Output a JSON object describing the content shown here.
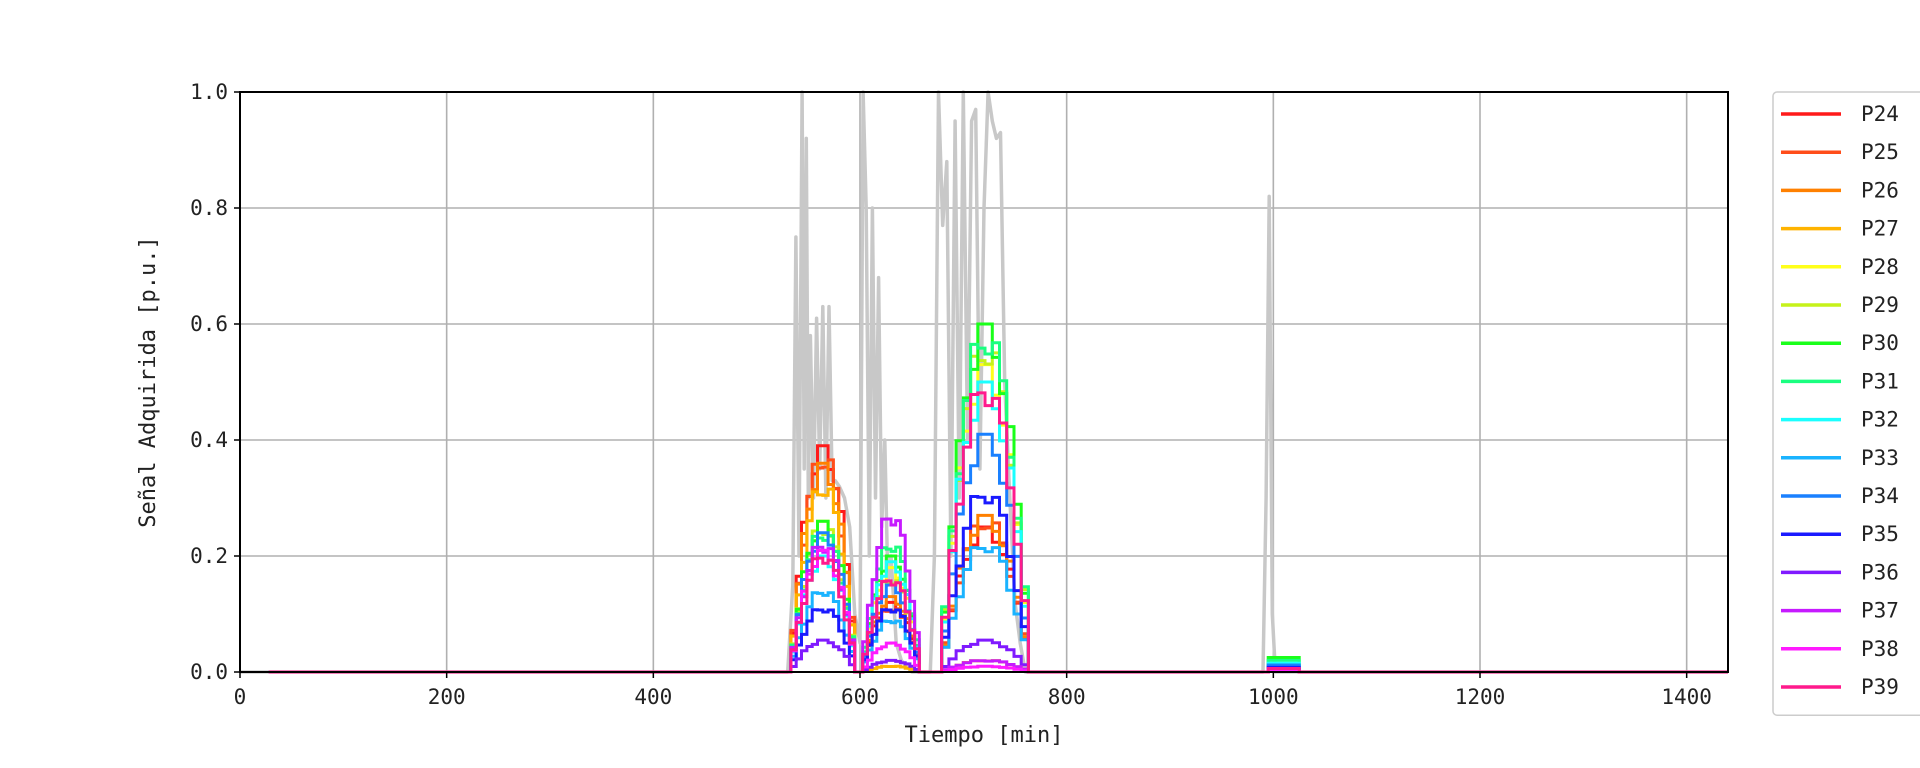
{
  "chart_data": {
    "type": "line",
    "xlabel": "Tiempo [min]",
    "ylabel": "Señal Adquirida [p.u.]",
    "xlim": [
      0,
      1440
    ],
    "ylim": [
      0,
      1.0
    ],
    "xticks": [
      "0",
      "200",
      "400",
      "600",
      "800",
      "1000",
      "1200",
      "1400"
    ],
    "yticks": [
      "0.0",
      "0.2",
      "0.4",
      "0.6",
      "0.8",
      "1.0"
    ],
    "grid": true,
    "legend_position": "right-outside",
    "background_series": {
      "color": "#c8c8c8",
      "x": [
        0,
        530,
        535,
        538,
        541,
        544,
        546,
        548,
        550,
        552,
        555,
        558,
        561,
        564,
        567,
        570,
        573,
        576,
        580,
        585,
        590,
        595,
        600,
        603,
        606,
        609,
        612,
        615,
        618,
        621,
        624,
        627,
        630,
        635,
        640,
        650,
        660,
        668,
        672,
        676,
        680,
        684,
        688,
        692,
        696,
        700,
        704,
        708,
        712,
        716,
        720,
        724,
        728,
        732,
        736,
        740,
        745,
        750,
        755,
        760,
        765,
        770,
        990,
        993,
        996,
        999,
        1002,
        1440
      ],
      "y": [
        0,
        0,
        0.15,
        0.75,
        0.2,
        1.0,
        0.35,
        0.92,
        0.3,
        0.58,
        0.3,
        0.61,
        0.35,
        0.63,
        0.3,
        0.63,
        0.33,
        0.33,
        0.32,
        0.3,
        0.25,
        0.1,
        0.05,
        1.0,
        0.8,
        0.2,
        0.8,
        0.3,
        0.68,
        0.25,
        0.4,
        0.15,
        0.2,
        0.05,
        0.02,
        0.0,
        0.0,
        0.0,
        0.2,
        1.0,
        0.77,
        0.88,
        0.2,
        0.95,
        0.3,
        1.0,
        0.4,
        0.95,
        0.97,
        0.35,
        0.8,
        1.0,
        0.95,
        0.92,
        0.93,
        0.5,
        0.3,
        0.12,
        0.05,
        0.0,
        0.0,
        0.0,
        0.0,
        0.3,
        0.82,
        0.1,
        0.0,
        0.0
      ]
    },
    "series": [
      {
        "name": "P24",
        "color": "#ff1a1a",
        "peaks": [
          0.39,
          0.12,
          0.25,
          0.005
        ]
      },
      {
        "name": "P25",
        "color": "#ff4d1a",
        "peaks": [
          0.37,
          0.11,
          0.26,
          0.005
        ]
      },
      {
        "name": "P26",
        "color": "#ff8000",
        "peaks": [
          0.36,
          0.13,
          0.27,
          0.006
        ]
      },
      {
        "name": "P27",
        "color": "#ffb300",
        "peaks": [
          0.32,
          0.01,
          0.02,
          0.004
        ]
      },
      {
        "name": "P28",
        "color": "#ffff1a",
        "peaks": [
          0.26,
          0.18,
          0.53,
          0.01
        ]
      },
      {
        "name": "P29",
        "color": "#c6f21a",
        "peaks": [
          0.25,
          0.16,
          0.56,
          0.012
        ]
      },
      {
        "name": "P30",
        "color": "#1aff1a",
        "peaks": [
          0.26,
          0.2,
          0.6,
          0.025
        ]
      },
      {
        "name": "P31",
        "color": "#1aff80",
        "peaks": [
          0.24,
          0.22,
          0.58,
          0.02
        ]
      },
      {
        "name": "P32",
        "color": "#1affff",
        "peaks": [
          0.2,
          0.19,
          0.5,
          0.015
        ]
      },
      {
        "name": "P33",
        "color": "#1ab3ff",
        "peaks": [
          0.14,
          0.09,
          0.22,
          0.01
        ]
      },
      {
        "name": "P34",
        "color": "#1a80ff",
        "peaks": [
          0.24,
          0.15,
          0.41,
          0.012
        ]
      },
      {
        "name": "P35",
        "color": "#1a1aff",
        "peaks": [
          0.11,
          0.11,
          0.31,
          0.008
        ]
      },
      {
        "name": "P36",
        "color": "#801aff",
        "peaks": [
          0.055,
          0.02,
          0.055,
          0.003
        ]
      },
      {
        "name": "P37",
        "color": "#c61aff",
        "peaks": [
          0.22,
          0.27,
          0.02,
          0.003
        ]
      },
      {
        "name": "P38",
        "color": "#ff1aff",
        "peaks": [
          0.21,
          0.05,
          0.01,
          0.003
        ]
      },
      {
        "name": "P39",
        "color": "#ff1a8c",
        "peaks": [
          0.2,
          0.16,
          0.49,
          0.006
        ]
      }
    ],
    "hump_windows_min": [
      [
        528,
        600
      ],
      [
        598,
        662
      ],
      [
        672,
        770
      ],
      [
        995,
        1025
      ]
    ]
  }
}
